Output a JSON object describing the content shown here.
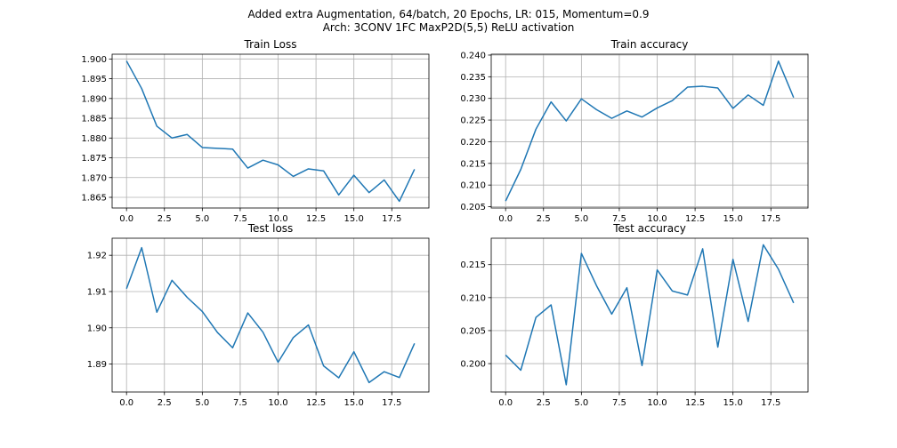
{
  "figure": {
    "suptitle_line1": "Added extra Augmentation, 64/batch, 20 Epochs, LR: 015, Momentum=0.9",
    "suptitle_line2": "Arch: 3CONV 1FC MaxP2D(5,5) ReLU activation",
    "line_color": "#1f77b4",
    "grid_color": "#b0b0b0"
  },
  "chart_data": [
    {
      "type": "line",
      "title": "Train Loss",
      "xlabel": "",
      "ylabel": "",
      "grid": true,
      "x": [
        0,
        1,
        2,
        3,
        4,
        5,
        6,
        7,
        8,
        9,
        10,
        11,
        12,
        13,
        14,
        15,
        16,
        17,
        18,
        19
      ],
      "series": [
        {
          "values": [
            1.8995,
            1.8925,
            1.883,
            1.88,
            1.8809,
            1.8776,
            1.8774,
            1.8772,
            1.8724,
            1.8744,
            1.8732,
            1.8703,
            1.8722,
            1.8717,
            1.8656,
            1.8706,
            1.8662,
            1.8694,
            1.864,
            1.8721
          ]
        }
      ],
      "xlim": [
        -0.95,
        19.95
      ],
      "ylim": [
        1.8623,
        1.9012
      ],
      "xticks": [
        0,
        2.5,
        5,
        7.5,
        10,
        12.5,
        15,
        17.5
      ],
      "xtick_labels": [
        "0.0",
        "2.5",
        "5.0",
        "7.5",
        "10.0",
        "12.5",
        "15.0",
        "17.5"
      ],
      "yticks": [
        1.865,
        1.87,
        1.875,
        1.88,
        1.885,
        1.89,
        1.895,
        1.9
      ],
      "ytick_labels": [
        "1.865",
        "1.870",
        "1.875",
        "1.880",
        "1.885",
        "1.890",
        "1.895",
        "1.900"
      ]
    },
    {
      "type": "line",
      "title": "Train accuracy",
      "xlabel": "",
      "ylabel": "",
      "grid": true,
      "x": [
        0,
        1,
        2,
        3,
        4,
        5,
        6,
        7,
        8,
        9,
        10,
        11,
        12,
        13,
        14,
        15,
        16,
        17,
        18,
        19
      ],
      "series": [
        {
          "values": [
            0.2063,
            0.2136,
            0.2229,
            0.2292,
            0.2248,
            0.2299,
            0.2274,
            0.2254,
            0.2271,
            0.2257,
            0.2278,
            0.2295,
            0.2326,
            0.2328,
            0.2324,
            0.2277,
            0.2308,
            0.2284,
            0.2386,
            0.2302
          ]
        }
      ],
      "xlim": [
        -0.95,
        19.95
      ],
      "ylim": [
        0.2047,
        0.2402
      ],
      "xticks": [
        0,
        2.5,
        5,
        7.5,
        10,
        12.5,
        15,
        17.5
      ],
      "xtick_labels": [
        "0.0",
        "2.5",
        "5.0",
        "7.5",
        "10.0",
        "12.5",
        "15.0",
        "17.5"
      ],
      "yticks": [
        0.205,
        0.21,
        0.215,
        0.22,
        0.225,
        0.23,
        0.235,
        0.24
      ],
      "ytick_labels": [
        "0.205",
        "0.210",
        "0.215",
        "0.220",
        "0.225",
        "0.230",
        "0.235",
        "0.240"
      ]
    },
    {
      "type": "line",
      "title": "Test loss",
      "xlabel": "",
      "ylabel": "",
      "grid": true,
      "x": [
        0,
        1,
        2,
        3,
        4,
        5,
        6,
        7,
        8,
        9,
        10,
        11,
        12,
        13,
        14,
        15,
        16,
        17,
        18,
        19
      ],
      "series": [
        {
          "values": [
            1.9108,
            1.9221,
            1.9043,
            1.9131,
            1.9084,
            1.9045,
            1.8987,
            1.8945,
            1.9041,
            1.8988,
            1.8905,
            1.8973,
            1.9008,
            1.8895,
            1.8862,
            1.8934,
            1.8849,
            1.8879,
            1.8863,
            1.8957
          ]
        }
      ],
      "xlim": [
        -0.95,
        19.95
      ],
      "ylim": [
        1.8823,
        1.9247
      ],
      "xticks": [
        0,
        2.5,
        5,
        7.5,
        10,
        12.5,
        15,
        17.5
      ],
      "xtick_labels": [
        "0.0",
        "2.5",
        "5.0",
        "7.5",
        "10.0",
        "12.5",
        "15.0",
        "17.5"
      ],
      "yticks": [
        1.89,
        1.9,
        1.91,
        1.92
      ],
      "ytick_labels": [
        "1.89",
        "1.90",
        "1.91",
        "1.92"
      ]
    },
    {
      "type": "line",
      "title": "Test accuracy",
      "xlabel": "",
      "ylabel": "",
      "grid": true,
      "x": [
        0,
        1,
        2,
        3,
        4,
        5,
        6,
        7,
        8,
        9,
        10,
        11,
        12,
        13,
        14,
        15,
        16,
        17,
        18,
        19
      ],
      "series": [
        {
          "values": [
            0.2013,
            0.199,
            0.207,
            0.2089,
            0.1968,
            0.2167,
            0.2118,
            0.2075,
            0.2115,
            0.1997,
            0.2142,
            0.211,
            0.2104,
            0.2174,
            0.2025,
            0.2158,
            0.2064,
            0.218,
            0.2143,
            0.2092
          ]
        }
      ],
      "xlim": [
        -0.95,
        19.95
      ],
      "ylim": [
        0.1957,
        0.219
      ],
      "xticks": [
        0,
        2.5,
        5,
        7.5,
        10,
        12.5,
        15,
        17.5
      ],
      "xtick_labels": [
        "0.0",
        "2.5",
        "5.0",
        "7.5",
        "10.0",
        "12.5",
        "15.0",
        "17.5"
      ],
      "yticks": [
        0.2,
        0.205,
        0.21,
        0.215
      ],
      "ytick_labels": [
        "0.200",
        "0.205",
        "0.210",
        "0.215"
      ]
    }
  ]
}
